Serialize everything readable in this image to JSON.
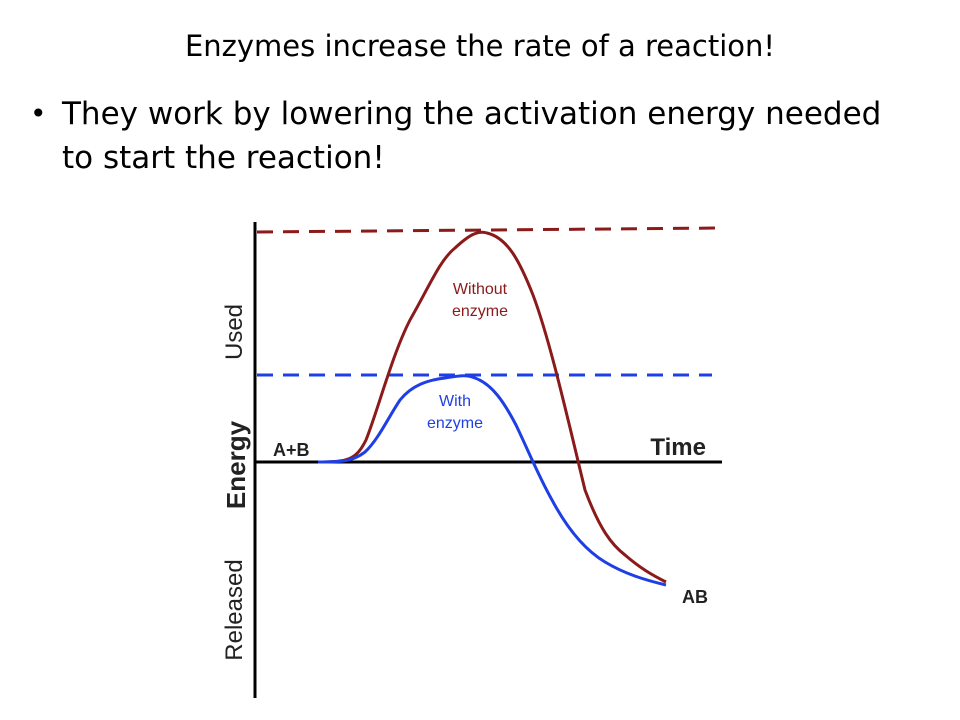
{
  "slide": {
    "title": "Enzymes increase the rate of a reaction!",
    "bullet": "They work by lowering the activation energy needed to start the reaction!"
  },
  "diagram": {
    "axis": {
      "y_label_top": "Used",
      "y_label_middle": "Energy",
      "y_label_bottom": "Released",
      "x_label": "Time"
    },
    "reactants_label": "A+B",
    "product_label": "AB",
    "curves": [
      {
        "name": "Without\nenzyme",
        "line1": "Without",
        "line2": "enzyme",
        "color": "#8b1a1a"
      },
      {
        "name": "With\nenzyme",
        "line1": "With",
        "line2": "enzyme",
        "color": "#1f3fe6"
      }
    ]
  }
}
